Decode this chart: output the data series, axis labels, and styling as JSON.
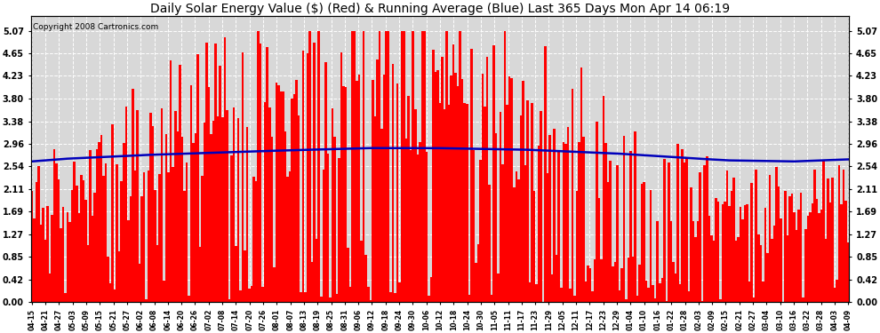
{
  "title": "Daily Solar Energy Value ($) (Red) & Running Average (Blue) Last 365 Days Mon Apr 14 06:19",
  "copyright": "Copyright 2008 Cartronics.com",
  "yticks": [
    0.0,
    0.42,
    0.85,
    1.27,
    1.69,
    2.11,
    2.54,
    2.96,
    3.38,
    3.8,
    4.23,
    4.65,
    5.07
  ],
  "ylim": [
    0.0,
    5.35
  ],
  "bar_color": "#ff0000",
  "avg_color": "#0000bb",
  "bg_color": "#ffffff",
  "plot_bg_color": "#d8d8d8",
  "grid_color": "#ffffff",
  "title_fontsize": 10,
  "copyright_fontsize": 6.5,
  "tick_label_color": "#000000",
  "xtick_labels": [
    "04-15",
    "04-21",
    "04-27",
    "05-03",
    "05-09",
    "05-15",
    "05-21",
    "05-27",
    "06-02",
    "06-08",
    "06-14",
    "06-20",
    "06-26",
    "07-02",
    "07-08",
    "07-14",
    "07-20",
    "07-26",
    "08-01",
    "08-07",
    "08-13",
    "08-19",
    "08-25",
    "08-31",
    "09-06",
    "09-12",
    "09-18",
    "09-24",
    "09-30",
    "10-06",
    "10-12",
    "10-18",
    "10-24",
    "10-30",
    "11-05",
    "11-11",
    "11-17",
    "11-23",
    "11-29",
    "12-05",
    "12-11",
    "12-17",
    "12-23",
    "12-29",
    "01-04",
    "01-10",
    "01-16",
    "01-22",
    "01-28",
    "02-03",
    "02-09",
    "02-15",
    "02-21",
    "02-27",
    "03-04",
    "03-10",
    "03-16",
    "03-22",
    "03-28",
    "04-03",
    "04-09"
  ],
  "avg_key_x": [
    0,
    15,
    50,
    100,
    150,
    180,
    220,
    260,
    290,
    310,
    340,
    365
  ],
  "avg_key_y": [
    2.63,
    2.68,
    2.75,
    2.82,
    2.88,
    2.88,
    2.85,
    2.78,
    2.7,
    2.65,
    2.63,
    2.67
  ]
}
